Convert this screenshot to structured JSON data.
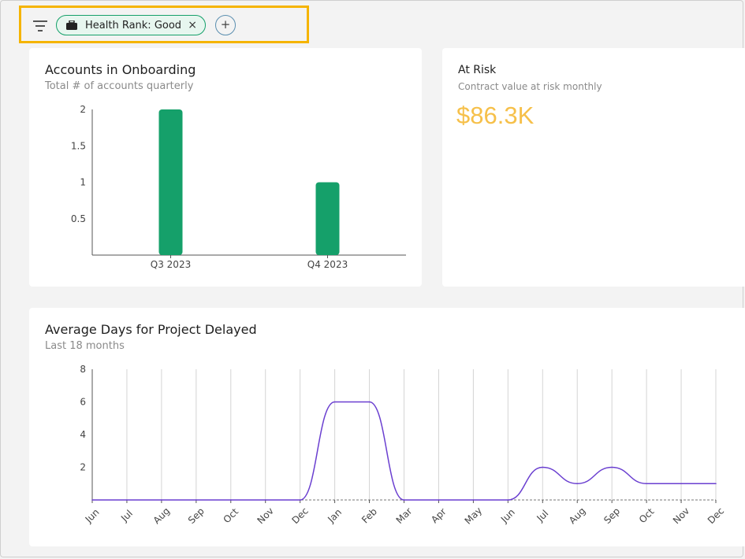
{
  "filters": {
    "active_chip": {
      "label": "Health Rank: Good",
      "icon": "briefcase-icon",
      "remove_glyph": "×"
    },
    "add_glyph": "+"
  },
  "onboarding_card": {
    "title": "Accounts in Onboarding",
    "subtitle": "Total # of accounts quarterly"
  },
  "at_risk_card": {
    "title": "At Risk",
    "subtitle": "Contract value at risk monthly",
    "value": "$86.3K",
    "value_color": "#f6c04a"
  },
  "delayed_card": {
    "title": "Average Days for Project Delayed",
    "subtitle": "Last 18 months"
  },
  "colors": {
    "bar": "#15a06a",
    "line": "#6a3fd0",
    "highlight": "#f5b400"
  },
  "chart_data": [
    {
      "type": "bar",
      "title": "Accounts in Onboarding",
      "categories": [
        "Q3 2023",
        "Q4 2023"
      ],
      "values": [
        2,
        1
      ],
      "ylim": [
        0,
        2
      ],
      "yticks": [
        "0.5",
        "1",
        "1.5",
        "2"
      ],
      "grid": false
    },
    {
      "type": "line",
      "title": "Average Days for Project Delayed",
      "x": [
        "Jun",
        "Jul",
        "Aug",
        "Sep",
        "Oct",
        "Nov",
        "Dec",
        "Jan",
        "Feb",
        "Mar",
        "Apr",
        "May",
        "Jun",
        "Jul",
        "Aug",
        "Sep",
        "Oct",
        "Nov",
        "Dec"
      ],
      "values": [
        0,
        0,
        0,
        0,
        0,
        0,
        0,
        6,
        6,
        0,
        0,
        0,
        0,
        2,
        1,
        2,
        1,
        1,
        1
      ],
      "ylim": [
        0,
        8
      ],
      "yticks": [
        "2",
        "4",
        "6",
        "8"
      ],
      "grid": "vertical"
    }
  ]
}
